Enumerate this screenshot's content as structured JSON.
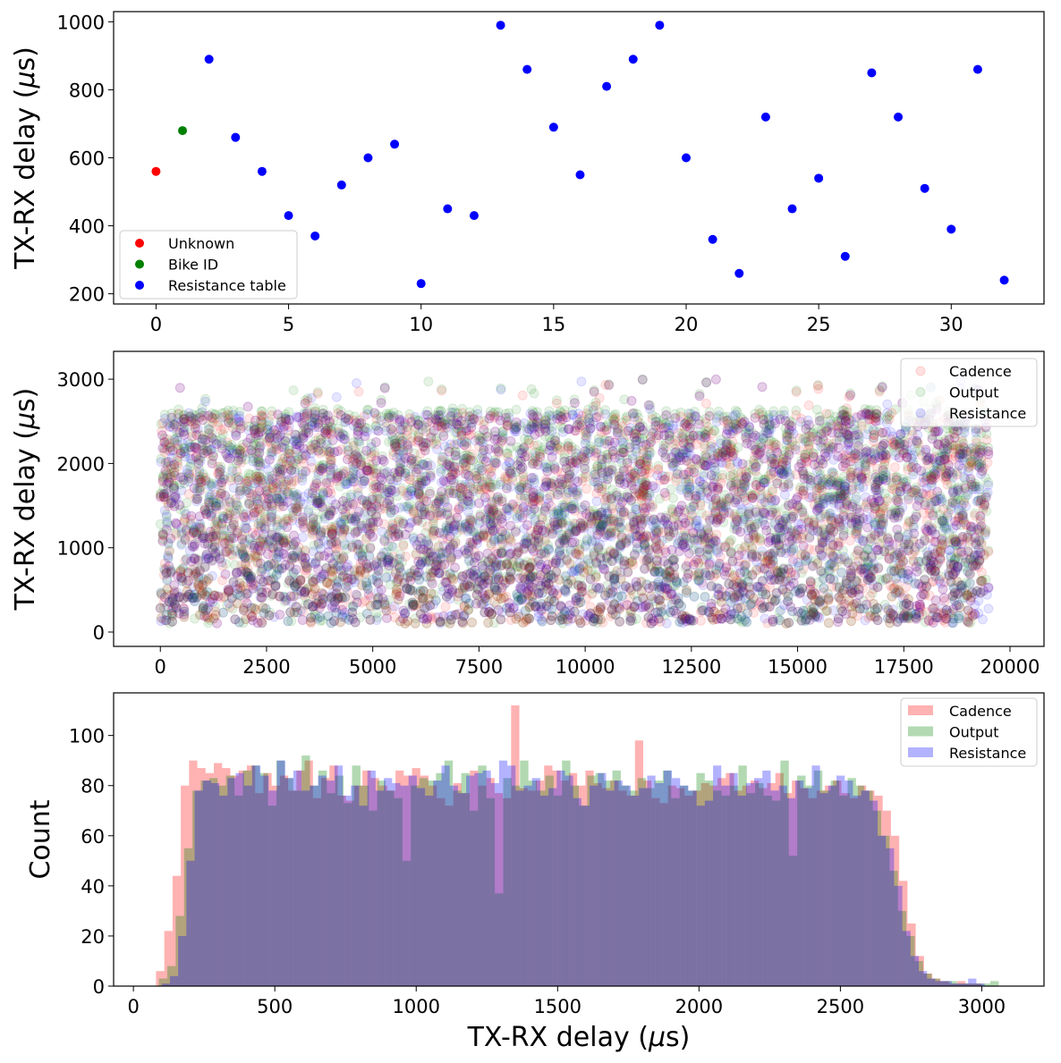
{
  "chart_data": [
    {
      "type": "scatter",
      "xlabel": "",
      "ylabel": "TX-RX delay ($\\mu$s)",
      "ylabel_text": "TX-RX delay (",
      "ylabel_mu": "μ",
      "ylabel_tail": "s)",
      "xlim": [
        -1.6,
        33.5
      ],
      "ylim": [
        170,
        1030
      ],
      "xticks": [
        "0",
        "5",
        "10",
        "15",
        "20",
        "25",
        "30"
      ],
      "yticks": [
        "200",
        "400",
        "600",
        "800",
        "1000"
      ],
      "legend": "lower-left",
      "series": [
        {
          "name": "Unknown",
          "color": "#ff0000",
          "points": [
            [
              0,
              560
            ]
          ]
        },
        {
          "name": "Bike ID",
          "color": "#008000",
          "points": [
            [
              1,
              680
            ]
          ]
        },
        {
          "name": "Resistance table",
          "color": "#0000ff",
          "points": [
            [
              2,
              890
            ],
            [
              3,
              660
            ],
            [
              4,
              560
            ],
            [
              5,
              430
            ],
            [
              6,
              370
            ],
            [
              7,
              520
            ],
            [
              8,
              600
            ],
            [
              9,
              640
            ],
            [
              10,
              230
            ],
            [
              11,
              450
            ],
            [
              12,
              430
            ],
            [
              13,
              990
            ],
            [
              14,
              860
            ],
            [
              15,
              690
            ],
            [
              16,
              550
            ],
            [
              17,
              810
            ],
            [
              18,
              890
            ],
            [
              19,
              990
            ],
            [
              20,
              600
            ],
            [
              21,
              360
            ],
            [
              22,
              260
            ],
            [
              23,
              720
            ],
            [
              24,
              450
            ],
            [
              25,
              540
            ],
            [
              26,
              310
            ],
            [
              27,
              850
            ],
            [
              28,
              720
            ],
            [
              29,
              510
            ],
            [
              30,
              390
            ],
            [
              31,
              860
            ],
            [
              32,
              240
            ]
          ]
        }
      ]
    },
    {
      "type": "scatter",
      "ylabel_text": "TX-RX delay (",
      "ylabel_mu": "μ",
      "ylabel_tail": "s)",
      "xlim": [
        -1100,
        20800
      ],
      "ylim": [
        -170,
        3330
      ],
      "xticks": [
        "0",
        "2500",
        "5000",
        "7500",
        "10000",
        "12500",
        "15000",
        "17500",
        "20000"
      ],
      "yticks": [
        "0",
        "1000",
        "2000",
        "3000"
      ],
      "legend": "upper-right",
      "alpha": 0.1,
      "series": [
        {
          "name": "Cadence",
          "color": "#ff0000",
          "x_range": [
            0,
            19500
          ],
          "y_range": [
            100,
            2600
          ],
          "outlier_max": 3000
        },
        {
          "name": "Output",
          "color": "#008000",
          "x_range": [
            0,
            19500
          ],
          "y_range": [
            100,
            2650
          ],
          "outlier_max": 3000
        },
        {
          "name": "Resistance",
          "color": "#0000ff",
          "x_range": [
            0,
            19500
          ],
          "y_range": [
            100,
            2600
          ],
          "outlier_max": 3000
        }
      ]
    },
    {
      "type": "bar",
      "subtype": "histogram",
      "xlabel_text": "TX-RX delay (",
      "xlabel_mu": "μ",
      "xlabel_tail": "s)",
      "ylabel": "Count",
      "xlim": [
        -70,
        3220
      ],
      "ylim": [
        0,
        117
      ],
      "xticks": [
        "0",
        "500",
        "1000",
        "1500",
        "2000",
        "2500",
        "3000"
      ],
      "yticks": [
        "0",
        "20",
        "40",
        "60",
        "80",
        "100"
      ],
      "legend": "upper-right",
      "alpha": 0.3,
      "series": [
        {
          "name": "Cadence",
          "color": "#ff0000",
          "bin_start": 80,
          "bin_width": 29.2,
          "values": [
            6,
            22,
            44,
            80,
            90,
            87,
            85,
            89,
            87,
            84,
            86,
            88,
            77,
            85,
            80,
            84,
            78,
            86,
            90,
            75,
            83,
            88,
            76,
            74,
            80,
            86,
            83,
            80,
            78,
            86,
            84,
            87,
            84,
            80,
            75,
            72,
            81,
            77,
            86,
            80,
            83,
            77,
            75,
            112,
            79,
            78,
            82,
            88,
            86,
            82,
            85,
            80,
            86,
            81,
            79,
            82,
            78,
            76,
            98,
            82,
            75,
            73,
            80,
            79,
            76,
            78,
            81,
            80,
            83,
            85,
            78,
            80,
            82,
            79,
            81,
            85,
            77,
            82,
            79,
            75,
            78,
            80,
            82,
            77,
            75,
            80,
            78,
            76,
            70,
            60,
            42,
            25,
            12,
            5,
            3,
            2,
            1,
            2,
            1,
            1
          ]
        },
        {
          "name": "Output",
          "color": "#008000",
          "bin_start": 90,
          "bin_width": 29.7,
          "values": [
            3,
            8,
            28,
            55,
            78,
            82,
            83,
            80,
            84,
            76,
            86,
            88,
            85,
            72,
            90,
            83,
            78,
            92,
            80,
            86,
            77,
            84,
            73,
            88,
            80,
            70,
            82,
            78,
            75,
            50,
            80,
            83,
            82,
            85,
            90,
            78,
            85,
            70,
            88,
            75,
            37,
            83,
            80,
            90,
            82,
            78,
            84,
            76,
            90,
            80,
            72,
            84,
            85,
            82,
            86,
            80,
            78,
            83,
            79,
            82,
            86,
            75,
            80,
            78,
            85,
            82,
            78,
            76,
            80,
            88,
            77,
            81,
            76,
            74,
            90,
            52,
            84,
            80,
            86,
            78,
            82,
            76,
            83,
            80,
            78,
            70,
            60,
            46,
            30,
            20,
            10,
            5,
            3,
            2,
            2,
            1,
            1,
            1,
            1,
            2
          ]
        },
        {
          "name": "Resistance",
          "color": "#0000ff",
          "bin_start": 100,
          "bin_width": 29.1,
          "values": [
            1,
            4,
            20,
            50,
            78,
            82,
            81,
            76,
            83,
            85,
            80,
            88,
            84,
            78,
            90,
            83,
            86,
            78,
            80,
            84,
            82,
            88,
            76,
            80,
            72,
            86,
            78,
            83,
            81,
            80,
            84,
            79,
            76,
            82,
            88,
            80,
            77,
            84,
            85,
            86,
            81,
            90,
            88,
            78,
            80,
            83,
            76,
            79,
            86,
            84,
            75,
            72,
            80,
            85,
            78,
            82,
            80,
            76,
            79,
            84,
            81,
            86,
            83,
            80,
            78,
            72,
            74,
            88,
            80,
            85,
            76,
            81,
            83,
            86,
            78,
            80,
            75,
            82,
            79,
            88,
            77,
            80,
            84,
            82,
            76,
            78,
            74,
            60,
            55,
            40,
            22,
            12,
            6,
            3,
            2,
            2,
            1,
            1,
            3,
            1
          ]
        }
      ]
    }
  ]
}
